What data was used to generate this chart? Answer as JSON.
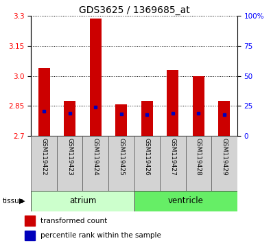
{
  "title": "GDS3625 / 1369685_at",
  "samples": [
    "GSM119422",
    "GSM119423",
    "GSM119424",
    "GSM119425",
    "GSM119426",
    "GSM119427",
    "GSM119428",
    "GSM119429"
  ],
  "red_values": [
    3.04,
    2.875,
    3.285,
    2.86,
    2.875,
    3.03,
    3.0,
    2.875
  ],
  "blue_values": [
    2.825,
    2.815,
    2.845,
    2.81,
    2.808,
    2.815,
    2.815,
    2.808
  ],
  "y_min": 2.7,
  "y_max": 3.3,
  "y_ticks_left": [
    2.7,
    2.85,
    3.0,
    3.15,
    3.3
  ],
  "y_ticks_right": [
    0,
    25,
    50,
    75,
    100
  ],
  "groups": [
    {
      "label": "atrium",
      "indices": [
        0,
        1,
        2,
        3
      ]
    },
    {
      "label": "ventricle",
      "indices": [
        4,
        5,
        6,
        7
      ]
    }
  ],
  "group_colors": [
    "#ccffcc",
    "#66ee66"
  ],
  "bar_color": "#cc0000",
  "blue_color": "#0000bb",
  "bar_width": 0.45,
  "legend_items": [
    {
      "color": "#cc0000",
      "label": "transformed count"
    },
    {
      "color": "#0000bb",
      "label": "percentile rank within the sample"
    }
  ]
}
